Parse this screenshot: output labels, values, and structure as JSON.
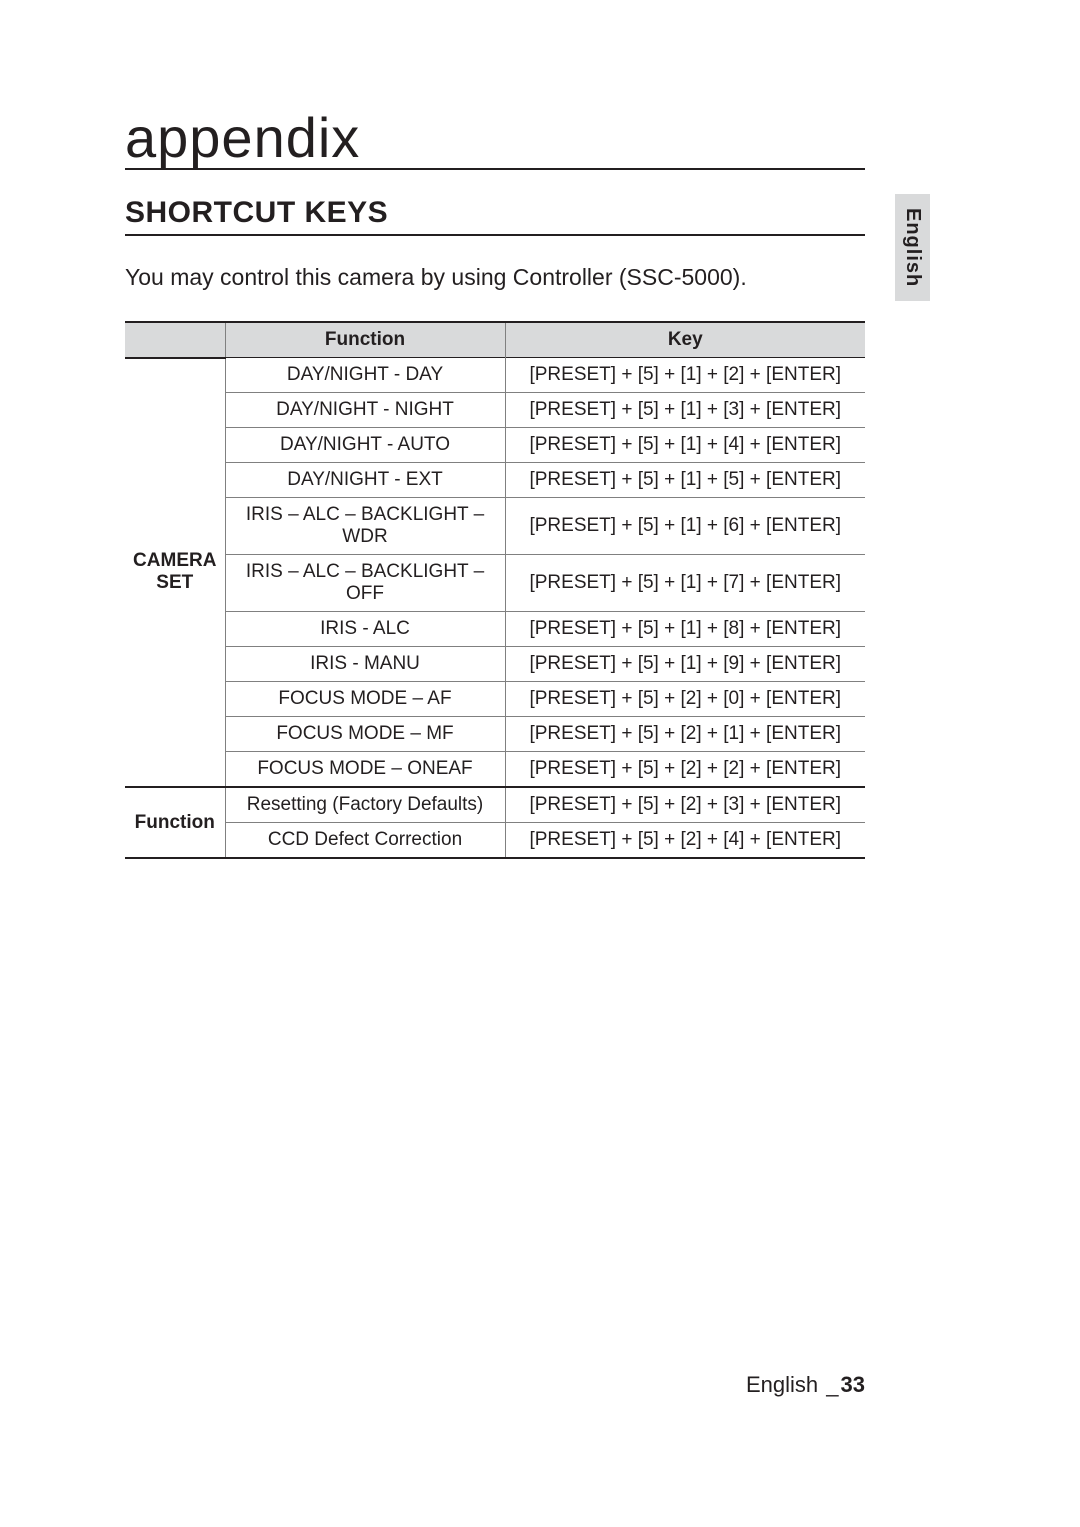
{
  "chapter_title": "appendix",
  "section_title": "SHORTCUT KEYS",
  "intro_text": "You may control this camera by using Controller (SSC-5000).",
  "side_tab_label": "English",
  "footer": {
    "language": "English",
    "separator": "_",
    "page_number": "33"
  },
  "table": {
    "headers": {
      "col1": "",
      "col2": "Function",
      "col3": "Key"
    },
    "groups": [
      {
        "label": "CAMERA SET",
        "rows": [
          {
            "function": "DAY/NIGHT - DAY",
            "key": "[PRESET] + [5] + [1] + [2] + [ENTER]"
          },
          {
            "function": "DAY/NIGHT - NIGHT",
            "key": "[PRESET] + [5] + [1] + [3] + [ENTER]"
          },
          {
            "function": "DAY/NIGHT - AUTO",
            "key": "[PRESET] + [5] + [1] + [4] + [ENTER]"
          },
          {
            "function": "DAY/NIGHT - EXT",
            "key": "[PRESET] + [5] + [1] + [5] + [ENTER]"
          },
          {
            "function": "IRIS – ALC – BACKLIGHT – WDR",
            "key": "[PRESET] + [5] + [1] + [6] + [ENTER]"
          },
          {
            "function": "IRIS – ALC – BACKLIGHT – OFF",
            "key": "[PRESET] + [5] + [1] + [7] + [ENTER]"
          },
          {
            "function": "IRIS - ALC",
            "key": "[PRESET] + [5] + [1] + [8] + [ENTER]"
          },
          {
            "function": "IRIS - MANU",
            "key": "[PRESET] + [5] + [1] + [9] + [ENTER]"
          },
          {
            "function": "FOCUS MODE – AF",
            "key": "[PRESET] + [5] + [2] + [0] + [ENTER]"
          },
          {
            "function": "FOCUS MODE – MF",
            "key": "[PRESET] + [5] + [2] + [1] + [ENTER]"
          },
          {
            "function": "FOCUS MODE – ONEAF",
            "key": "[PRESET] + [5] + [2] + [2] + [ENTER]"
          }
        ]
      },
      {
        "label": "Function",
        "rows": [
          {
            "function": "Resetting (Factory Defaults)",
            "key": "[PRESET] + [5] + [2] + [3] + [ENTER]"
          },
          {
            "function": "CCD Defect Correction",
            "key": "[PRESET] + [5] + [2] + [4] + [ENTER]"
          }
        ]
      }
    ]
  },
  "colors": {
    "text": "#231f20",
    "header_bg": "#d9dadb",
    "rule_strong": "#231f20",
    "rule_light": "#808080",
    "page_bg": "#ffffff"
  },
  "typography": {
    "chapter_fontsize_pt": 42,
    "section_fontsize_pt": 22,
    "intro_fontsize_pt": 17,
    "table_fontsize_pt": 14,
    "footer_fontsize_pt": 16
  }
}
